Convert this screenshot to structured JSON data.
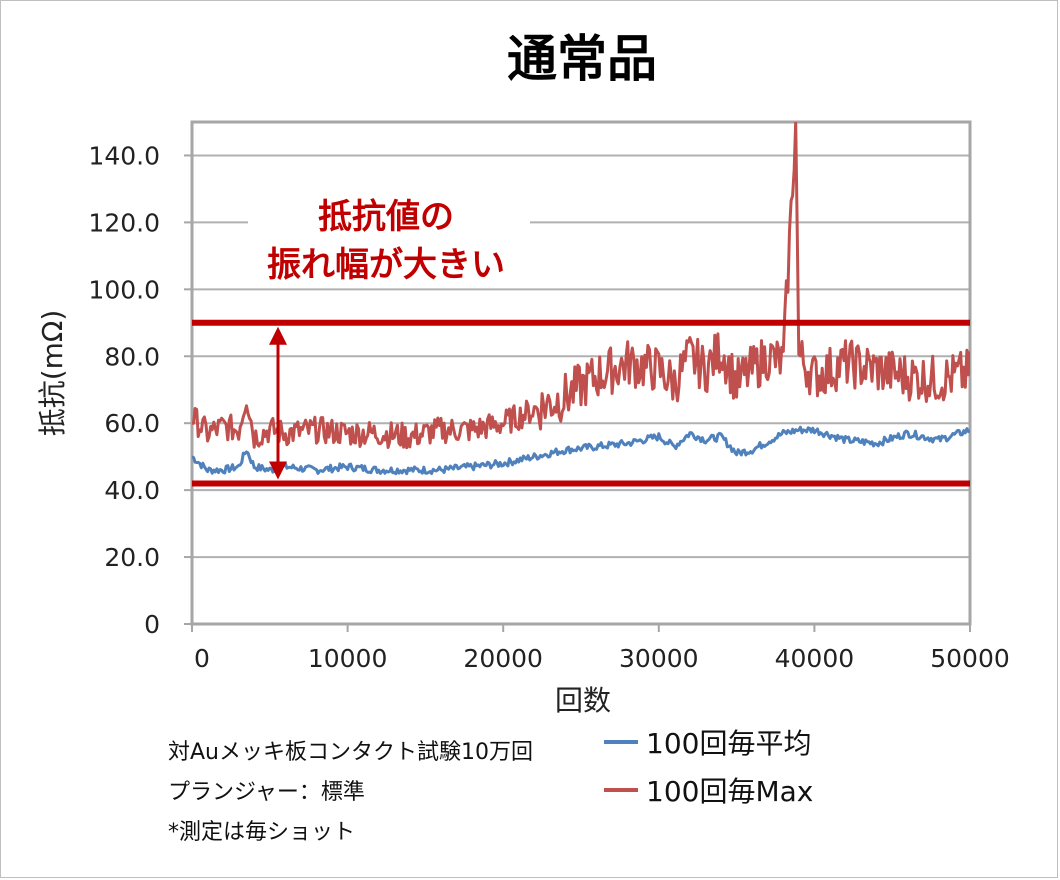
{
  "chart_data": {
    "type": "line",
    "title": "通常品",
    "xlabel": "回数",
    "ylabel": "抵抗(mΩ)",
    "xlim": [
      0,
      50000
    ],
    "ylim": [
      0,
      150
    ],
    "x_ticks": [
      "0",
      "10000",
      "20000",
      "30000",
      "40000",
      "50000"
    ],
    "y_ticks": [
      "0",
      "20.0",
      "40.0",
      "60.0",
      "80.0",
      "100.0",
      "120.0",
      "140.0"
    ],
    "grid": true,
    "legend_position": "bottom-right",
    "series": [
      {
        "name": "100回毎平均",
        "color": "#4f81bd",
        "x": [
          0,
          1000,
          2000,
          3000,
          3500,
          4000,
          5000,
          6000,
          8000,
          10000,
          12000,
          14000,
          16000,
          18000,
          20000,
          22000,
          24000,
          26000,
          28000,
          30000,
          31000,
          32000,
          33000,
          34000,
          35000,
          36000,
          38000,
          39000,
          40000,
          42000,
          44000,
          46000,
          48000,
          50000
        ],
        "values": [
          50,
          46,
          46,
          47,
          52,
          47,
          46,
          47,
          46,
          47,
          46,
          46,
          46,
          47,
          48,
          50,
          52,
          53,
          54,
          56,
          53,
          57,
          55,
          56,
          51,
          52,
          57,
          58,
          58,
          55,
          54,
          57,
          55,
          58
        ]
      },
      {
        "name": "100回毎Max",
        "color": "#c0504d",
        "x": [
          0,
          1000,
          2000,
          3000,
          3500,
          4000,
          5000,
          6000,
          8000,
          10000,
          12000,
          14000,
          16000,
          18000,
          20000,
          22000,
          24000,
          26000,
          28000,
          30000,
          31000,
          32000,
          33000,
          34000,
          35000,
          36000,
          37000,
          38000,
          38800,
          39000,
          40000,
          42000,
          44000,
          46000,
          48000,
          50000
        ],
        "values": [
          62,
          57,
          59,
          58,
          68,
          56,
          58,
          57,
          58,
          57,
          57,
          56,
          58,
          58,
          60,
          64,
          68,
          74,
          78,
          76,
          72,
          80,
          76,
          82,
          72,
          76,
          80,
          78,
          150,
          80,
          74,
          78,
          76,
          74,
          73,
          75
        ]
      }
    ],
    "annotations": {
      "band_lines_y": [
        90,
        42
      ],
      "band_color": "#c00000",
      "text_line1": "抵抗値の",
      "text_line2": "振れ幅が大きい"
    }
  },
  "legend": [
    {
      "label": "100回毎平均",
      "color": "#4f81bd"
    },
    {
      "label": "100回毎Max",
      "color": "#c0504d"
    }
  ],
  "notes": [
    "対Auメッキ板コンタクト試験10万回",
    "プランジャー：標準",
    "*測定は毎ショット"
  ]
}
